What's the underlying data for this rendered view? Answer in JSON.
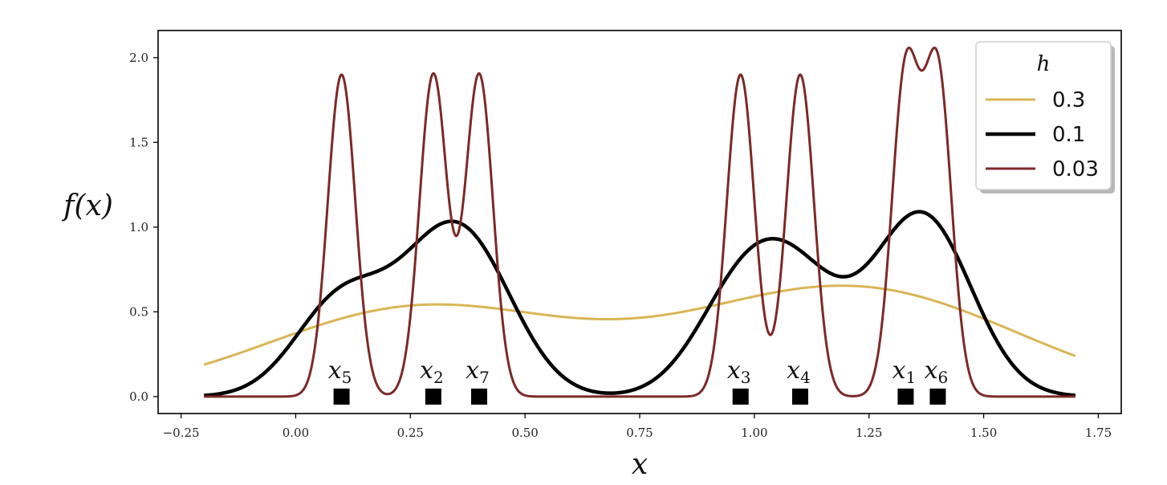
{
  "chart_data": {
    "type": "line",
    "xlabel": "x",
    "ylabel": "f(x)",
    "xlim": [
      -0.3,
      1.8
    ],
    "ylim": [
      -0.1,
      2.16
    ],
    "x_ticks": [
      "−0.25",
      "0.00",
      "0.25",
      "0.50",
      "0.75",
      "1.00",
      "1.25",
      "1.50",
      "1.75"
    ],
    "x_tick_values": [
      -0.25,
      0.0,
      0.25,
      0.5,
      0.75,
      1.0,
      1.25,
      1.5,
      1.75
    ],
    "y_ticks": [
      "0.0",
      "0.5",
      "1.0",
      "1.5",
      "2.0"
    ],
    "y_tick_values": [
      0.0,
      0.5,
      1.0,
      1.5,
      2.0
    ],
    "x_range": [
      -0.2,
      1.7
    ],
    "data_points": [
      {
        "base": "x",
        "sub": "1",
        "x": 1.33
      },
      {
        "base": "x",
        "sub": "2",
        "x": 0.3
      },
      {
        "base": "x",
        "sub": "3",
        "x": 0.97
      },
      {
        "base": "x",
        "sub": "4",
        "x": 1.1
      },
      {
        "base": "x",
        "sub": "5",
        "x": 0.1
      },
      {
        "base": "x",
        "sub": "6",
        "x": 1.4
      },
      {
        "base": "x",
        "sub": "7",
        "x": 0.4
      }
    ],
    "legend": {
      "title": "h",
      "placement": "top-right"
    },
    "series": [
      {
        "name": "0.3",
        "h": 0.3,
        "color": "#d9b555",
        "width": 3
      },
      {
        "name": "0.1",
        "h": 0.1,
        "color": "#000000",
        "width": 4.5
      },
      {
        "name": "0.03",
        "h": 0.03,
        "color": "#7b2a28",
        "width": 3
      }
    ],
    "grid": false
  }
}
